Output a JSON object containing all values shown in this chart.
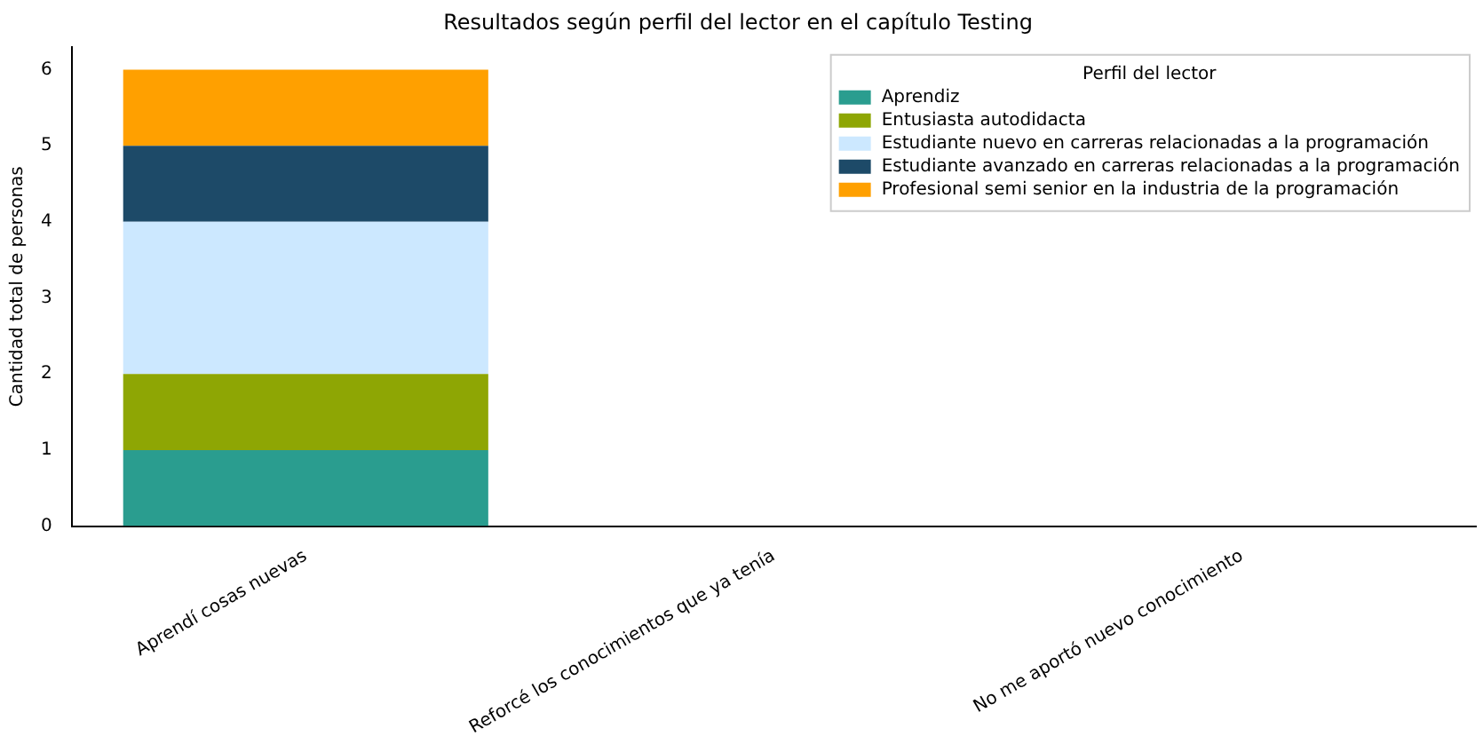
{
  "chart_data": {
    "type": "bar",
    "title": "Resultados según perfil del lector en el capítulo Testing",
    "ylabel": "Cantidad total de personas",
    "legend_title": "Perfil del lector",
    "categories": [
      "Aprendí cosas nuevas",
      "Reforcé los conocimientos que ya tenía",
      "No me aportó nuevo conocimiento"
    ],
    "stacked": true,
    "ylim": [
      0,
      6.3
    ],
    "yticks": [
      0,
      1,
      2,
      3,
      4,
      5,
      6
    ],
    "grid": false,
    "legend": "top right",
    "series": [
      {
        "name": "Aprendiz",
        "color": "#2a9d8f",
        "values": [
          1,
          0,
          0
        ]
      },
      {
        "name": "Entusiasta autodidacta",
        "color": "#8ea604",
        "values": [
          1,
          0,
          0
        ]
      },
      {
        "name": "Estudiante nuevo en carreras relacionadas a la programación",
        "color": "#cce8ff",
        "values": [
          2,
          0,
          0
        ]
      },
      {
        "name": "Estudiante avanzado en carreras relacionadas a la programación",
        "color": "#1d4a68",
        "values": [
          1,
          0,
          0
        ]
      },
      {
        "name": "Profesional semi senior en la industria de la programación",
        "color": "#ffa000",
        "values": [
          1,
          0,
          0
        ]
      }
    ]
  }
}
